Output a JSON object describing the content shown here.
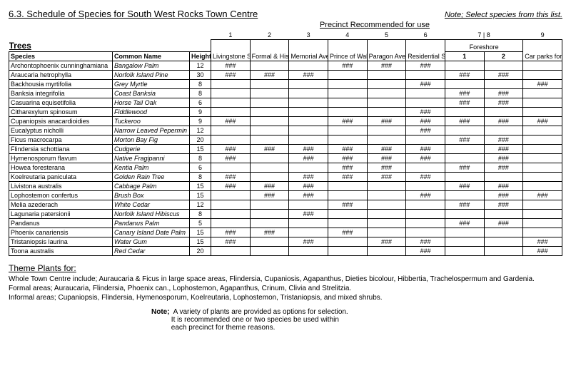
{
  "header": {
    "title": "6.3. Schedule of Species for South West Rocks Town Centre",
    "note_right": "Note; Select species from this list.",
    "precinct_label": "Precinct Recommended for use"
  },
  "columns": {
    "trees": "Trees",
    "species": "Species",
    "common": "Common Name",
    "height": "Height M",
    "nums": [
      "1",
      "2",
      "3",
      "4",
      "5",
      "6",
      "7",
      "8",
      "9"
    ],
    "names": [
      "Livingstone Street",
      "Formal & Historic",
      "Memorial Ave",
      "Prince of Wales Ave",
      "Paragon Ave.",
      "Residential Streets",
      "Foreshore 1",
      "Foreshore 2",
      "Car parks for DCP"
    ],
    "foreshore_group": "Foreshore",
    "foreshore_1": "1",
    "foreshore_2": "2"
  },
  "mark": "###",
  "rows": [
    {
      "sp": "Archontophoenix cunninghamiana",
      "cn": "Bangalow Palm",
      "h": "12",
      "p": [
        1,
        0,
        0,
        1,
        1,
        1,
        0,
        0,
        0
      ]
    },
    {
      "sp": "Araucaria hetrophylla",
      "cn": "Norfolk Island Pine",
      "h": "30",
      "p": [
        1,
        1,
        1,
        0,
        0,
        0,
        1,
        1,
        0
      ]
    },
    {
      "sp": "Backhousia myrtifolia",
      "cn": "Grey Myrtle",
      "h": "8",
      "p": [
        0,
        0,
        0,
        0,
        0,
        1,
        0,
        0,
        1
      ]
    },
    {
      "sp": "Banksia integrifolia",
      "cn": "Coast Banksia",
      "h": "8",
      "p": [
        0,
        0,
        0,
        0,
        0,
        0,
        1,
        1,
        0
      ]
    },
    {
      "sp": "Casuarina equisetifolia",
      "cn": "Horse Tail Oak",
      "h": "6",
      "p": [
        0,
        0,
        0,
        0,
        0,
        0,
        1,
        1,
        0
      ]
    },
    {
      "sp": "Citharexylum spinosum",
      "cn": "Fiddlewood",
      "h": "9",
      "p": [
        0,
        0,
        0,
        0,
        0,
        1,
        0,
        0,
        0
      ]
    },
    {
      "sp": "Cupaniopsis anacardioidies",
      "cn": "Tuckeroo",
      "h": "9",
      "p": [
        1,
        0,
        0,
        1,
        1,
        1,
        1,
        1,
        1
      ]
    },
    {
      "sp": "Eucalyptus nicholli",
      "cn": "Narrow Leaved Pepermin",
      "h": "12",
      "p": [
        0,
        0,
        0,
        0,
        0,
        1,
        0,
        0,
        0
      ]
    },
    {
      "sp": "Ficus macrocarpa",
      "cn": "Morton Bay Fig",
      "h": "20",
      "p": [
        0,
        0,
        0,
        0,
        0,
        0,
        1,
        1,
        0
      ]
    },
    {
      "sp": "Flindersia schottiana",
      "cn": "Cudgerie",
      "h": "15",
      "p": [
        1,
        1,
        1,
        1,
        1,
        1,
        0,
        1,
        0
      ]
    },
    {
      "sp": "Hymenosporum flavum",
      "cn": "Native Fragipanni",
      "h": "8",
      "p": [
        1,
        0,
        1,
        1,
        1,
        1,
        0,
        1,
        0
      ]
    },
    {
      "sp": "Howea foresterana",
      "cn": "Kentia Palm",
      "h": "6",
      "p": [
        0,
        0,
        0,
        1,
        1,
        0,
        1,
        1,
        0
      ]
    },
    {
      "sp": "Koelreutaria paniculata",
      "cn": "Golden Rain Tree",
      "h": "8",
      "p": [
        1,
        0,
        1,
        1,
        1,
        1,
        0,
        0,
        0
      ]
    },
    {
      "sp": "Livistona australis",
      "cn": "Cabbage Palm",
      "h": "15",
      "p": [
        1,
        1,
        1,
        0,
        0,
        0,
        1,
        1,
        0
      ]
    },
    {
      "sp": "Lophostemon confertus",
      "cn": "Brush Box",
      "h": "15",
      "p": [
        0,
        1,
        1,
        0,
        0,
        1,
        0,
        1,
        1
      ]
    },
    {
      "sp": "Melia azederach",
      "cn": "White Cedar",
      "h": "12",
      "p": [
        0,
        0,
        0,
        1,
        0,
        0,
        1,
        1,
        0
      ]
    },
    {
      "sp": "Lagunaria patersionii",
      "cn": "Norfolk Island Hibiscus",
      "h": "8",
      "p": [
        0,
        0,
        1,
        0,
        0,
        0,
        0,
        0,
        0
      ]
    },
    {
      "sp": "Pandanus",
      "cn": "Pandanus Palm",
      "h": "5",
      "p": [
        0,
        0,
        0,
        0,
        0,
        0,
        1,
        1,
        0
      ]
    },
    {
      "sp": "Phoenix canariensis",
      "cn": "Canary Island Date Palm",
      "h": "15",
      "p": [
        1,
        1,
        0,
        1,
        0,
        0,
        0,
        0,
        0
      ]
    },
    {
      "sp": "Tristaniopsis laurina",
      "cn": "Water Gum",
      "h": "15",
      "p": [
        1,
        0,
        1,
        0,
        1,
        1,
        0,
        0,
        1
      ]
    },
    {
      "sp": "Toona australis",
      "cn": "Red Cedar",
      "h": "20",
      "p": [
        0,
        0,
        0,
        0,
        0,
        1,
        0,
        0,
        1
      ]
    }
  ],
  "theme": {
    "heading": "Theme Plants for:",
    "line1": "Whole Town Centre include; Auraucaria & Ficus in large space areas, Flindersia, Cupaniosis, Agapanthus, Dieties bicolour, Hibbertia, Trachelospermum and Gardenia.",
    "line2": "Formal areas; Auraucaria, Flindersia, Phoenix can., Lophostemon, Agapanthus, Crinum, Clivia and Strelitzia.",
    "line3": "Informal areas;  Cupaniopsis, Flindersia, Hymenosporum, Koelreutaria, Lophostemon, Tristaniopsis, and mixed shrubs."
  },
  "footer": {
    "note_label": "Note;",
    "note_body1": "A variety of plants are provided as options for selection.",
    "note_body2": "It is recommended one or two species be used within",
    "note_body3": "each precinct for theme reasons."
  }
}
